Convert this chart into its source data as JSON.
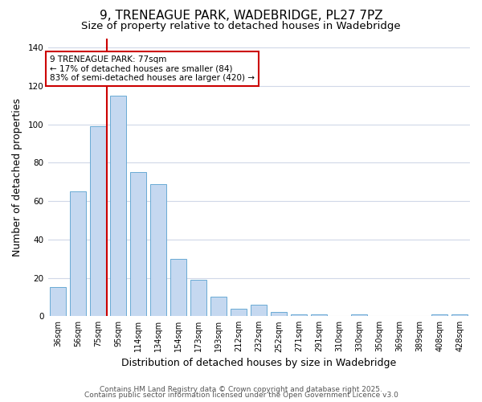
{
  "title_line1": "9, TRENEAGUE PARK, WADEBRIDGE, PL27 7PZ",
  "title_line2": "Size of property relative to detached houses in Wadebridge",
  "xlabel": "Distribution of detached houses by size in Wadebridge",
  "ylabel": "Number of detached properties",
  "bar_values": [
    15,
    65,
    99,
    115,
    75,
    69,
    30,
    19,
    10,
    4,
    6,
    2,
    1,
    1,
    0,
    1,
    0,
    0,
    0,
    1,
    1
  ],
  "bin_labels": [
    "36sqm",
    "56sqm",
    "75sqm",
    "95sqm",
    "114sqm",
    "134sqm",
    "154sqm",
    "173sqm",
    "193sqm",
    "212sqm",
    "232sqm",
    "252sqm",
    "271sqm",
    "291sqm",
    "310sqm",
    "330sqm",
    "350sqm",
    "369sqm",
    "389sqm",
    "408sqm",
    "428sqm"
  ],
  "bar_color": "#c5d8f0",
  "bar_edge_color": "#6aaad4",
  "red_line_x": 2,
  "ylim": [
    0,
    145
  ],
  "yticks": [
    0,
    20,
    40,
    60,
    80,
    100,
    120,
    140
  ],
  "annotation_text": "9 TRENEAGUE PARK: 77sqm\n← 17% of detached houses are smaller (84)\n83% of semi-detached houses are larger (420) →",
  "annotation_box_facecolor": "#ffffff",
  "annotation_border_color": "#cc0000",
  "footer_line1": "Contains HM Land Registry data © Crown copyright and database right 2025.",
  "footer_line2": "Contains public sector information licensed under the Open Government Licence v3.0",
  "background_color": "#ffffff",
  "grid_color": "#d0d8e8",
  "title_fontsize": 11,
  "subtitle_fontsize": 9.5,
  "axis_label_fontsize": 9,
  "tick_fontsize": 7,
  "footer_fontsize": 6.5,
  "annotation_fontsize": 7.5
}
